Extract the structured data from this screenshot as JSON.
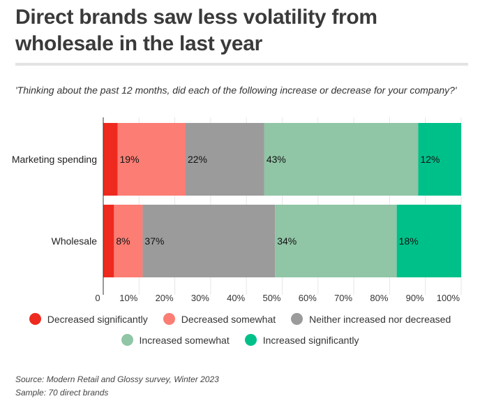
{
  "header": {
    "title": "Direct brands saw less volatility from wholesale in the last year",
    "question": "'Thinking about the past 12 months, did each of the following increase or decrease for your company?'"
  },
  "chart_data": {
    "type": "bar",
    "orientation": "horizontal",
    "stacked": true,
    "categories": [
      "Marketing spending",
      "Wholesale"
    ],
    "series": [
      {
        "name": "Decreased significantly",
        "color": "#ee2a1f",
        "values": [
          4,
          3
        ],
        "label_values": [
          "",
          ""
        ]
      },
      {
        "name": "Decreased somewhat",
        "color": "#fb7d74",
        "values": [
          19,
          8
        ],
        "label_values": [
          "19%",
          "8%"
        ]
      },
      {
        "name": "Neither increased nor decreased",
        "color": "#9b9b9b",
        "values": [
          22,
          37
        ],
        "label_values": [
          "22%",
          "37%"
        ]
      },
      {
        "name": "Increased somewhat",
        "color": "#90c5a6",
        "values": [
          43,
          34
        ],
        "label_values": [
          "43%",
          "34%"
        ]
      },
      {
        "name": "Increased significantly",
        "color": "#00c08a",
        "values": [
          12,
          18
        ],
        "label_values": [
          "12%",
          "18%"
        ]
      }
    ],
    "xlim": [
      0,
      100
    ],
    "ticks": [
      {
        "value": 0,
        "label": "0"
      },
      {
        "value": 10,
        "label": "10%"
      },
      {
        "value": 20,
        "label": "20%"
      },
      {
        "value": 30,
        "label": "30%"
      },
      {
        "value": 40,
        "label": "40%"
      },
      {
        "value": 50,
        "label": "50%"
      },
      {
        "value": 60,
        "label": "60%"
      },
      {
        "value": 70,
        "label": "70%"
      },
      {
        "value": 80,
        "label": "80%"
      },
      {
        "value": 90,
        "label": "90%"
      },
      {
        "value": 100,
        "label": "100%"
      }
    ],
    "grid": true,
    "legend_position": "bottom"
  },
  "footer": {
    "source": "Source: Modern Retail and Glossy survey, Winter 2023",
    "sample": "Sample: 70 direct brands"
  }
}
